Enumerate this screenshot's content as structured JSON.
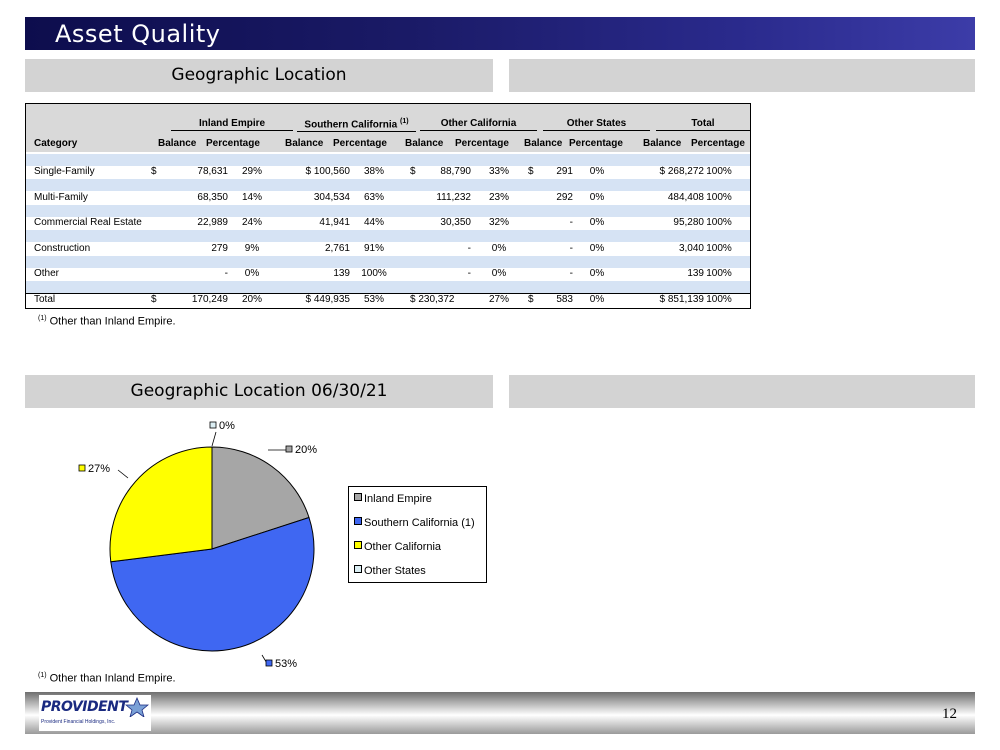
{
  "title": "Asset Quality",
  "section1": {
    "heading": "Geographic Location"
  },
  "section2": {
    "heading": "Geographic Location 06/30/21"
  },
  "table": {
    "groups": [
      "Inland Empire",
      "Southern California",
      "Other California",
      "Other States",
      "Total"
    ],
    "group_footnote_marker": "(1)",
    "category_header": "Category",
    "col_headers": [
      "Balance",
      "Percentage"
    ],
    "rows": [
      {
        "label": "Single-Family",
        "cells": [
          "$",
          "78,631",
          "29%",
          "$ 100,560",
          "38%",
          "$",
          "88,790",
          "33%",
          "$",
          "291",
          "0%",
          "$ 268,272",
          "100%"
        ]
      },
      {
        "label": "Multi-Family",
        "cells": [
          "",
          "68,350",
          "14%",
          "304,534",
          "63%",
          "",
          "111,232",
          "23%",
          "",
          "292",
          "0%",
          "484,408",
          "100%"
        ]
      },
      {
        "label": "Commercial Real Estate",
        "cells": [
          "",
          "22,989",
          "24%",
          "41,941",
          "44%",
          "",
          "30,350",
          "32%",
          "",
          "-",
          "0%",
          "95,280",
          "100%"
        ]
      },
      {
        "label": "Construction",
        "cells": [
          "",
          "279",
          "9%",
          "2,761",
          "91%",
          "",
          "-",
          "0%",
          "",
          "-",
          "0%",
          "3,040",
          "100%"
        ]
      },
      {
        "label": "Other",
        "cells": [
          "",
          "-",
          "0%",
          "139",
          "100%",
          "",
          "-",
          "0%",
          "",
          "-",
          "0%",
          "139",
          "100%"
        ]
      }
    ],
    "total": {
      "label": "Total",
      "cells": [
        "$",
        "170,249",
        "20%",
        "$ 449,935",
        "53%",
        "$ 230,372",
        "",
        "27%",
        "$",
        "583",
        "0%",
        "$ 851,139",
        "100%"
      ]
    }
  },
  "footnote_marker": "(1)",
  "footnote_text": "Other than Inland Empire.",
  "chart_data": {
    "type": "pie",
    "title": "",
    "slices": [
      {
        "name": "Inland Empire",
        "value": 20,
        "label": "20%",
        "color": "#a6a6a6"
      },
      {
        "name": "Southern California (1)",
        "value": 53,
        "label": "53%",
        "color": "#3f67f2"
      },
      {
        "name": "Other California",
        "value": 27,
        "label": "27%",
        "color": "#ffff00"
      },
      {
        "name": "Other States",
        "value": 0,
        "label": "0%",
        "color": "#dbeef3"
      }
    ],
    "legend_position": "right"
  },
  "footer": {
    "logo_text": "PROVIDENT",
    "logo_subtext": "Provident Financial Holdings, Inc.",
    "page_number": "12"
  }
}
